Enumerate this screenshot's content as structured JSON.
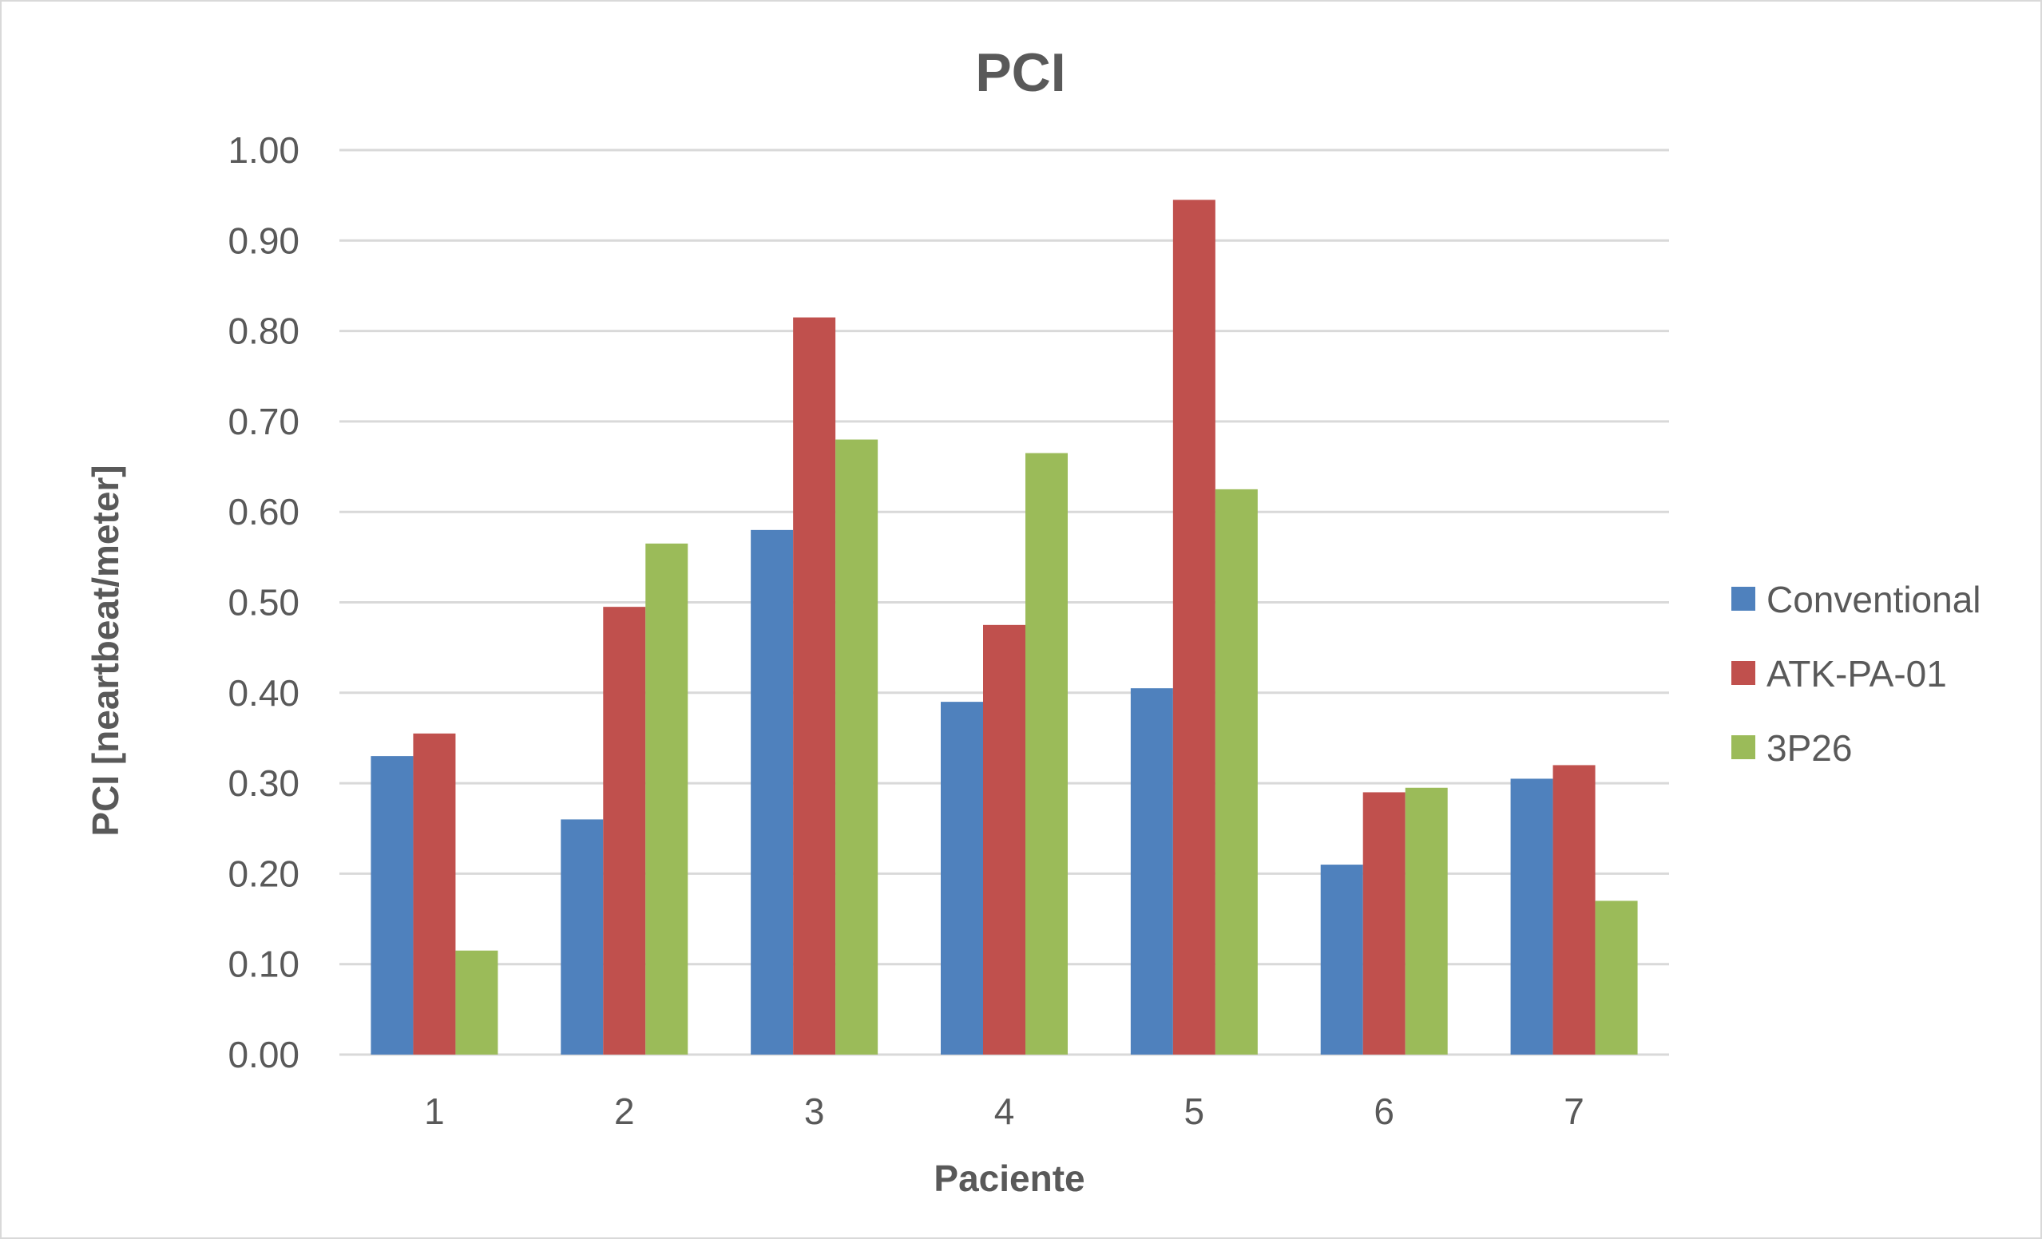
{
  "chart_data": {
    "type": "bar",
    "title": "PCI",
    "xlabel": "Paciente",
    "ylabel": "PCI [neartbeat/meter]",
    "categories": [
      "1",
      "2",
      "3",
      "4",
      "5",
      "6",
      "7"
    ],
    "ylim": [
      0,
      1.0
    ],
    "yticks": [
      "0.00",
      "0.10",
      "0.20",
      "0.30",
      "0.40",
      "0.50",
      "0.60",
      "0.70",
      "0.80",
      "0.90",
      "1.00"
    ],
    "grid": true,
    "legend_position": "right",
    "series": [
      {
        "name": "Conventional",
        "color": "#4f81bd",
        "values": [
          0.33,
          0.26,
          0.58,
          0.39,
          0.405,
          0.21,
          0.305
        ]
      },
      {
        "name": "ATK-PA-01",
        "color": "#c0504d",
        "values": [
          0.355,
          0.495,
          0.815,
          0.475,
          0.945,
          0.29,
          0.32
        ]
      },
      {
        "name": "3P26",
        "color": "#9bbb59",
        "values": [
          0.115,
          0.565,
          0.68,
          0.665,
          0.625,
          0.295,
          0.17
        ]
      }
    ]
  }
}
